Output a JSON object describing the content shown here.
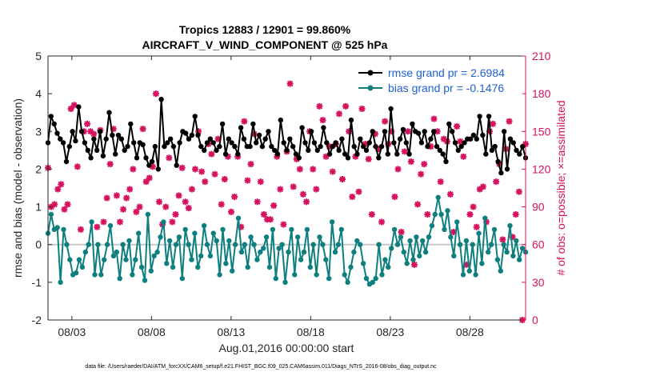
{
  "chart_data": {
    "type": "line",
    "title": "Tropics 12883 / 12901 = 99.860%",
    "subtitle": "AIRCRAFT_V_WIND_COMPONENT @ 525 hPa",
    "xlabel": "Aug.01,2016 00:00:00 start",
    "ylabel": "rmse and bias (model - observation)",
    "ylabel_right": "# of obs: o=possible; ×=assimilated",
    "footer": "data file: /Users/raeder/DAI/ATM_forcXX/CAM6_setup/f.e21.FHIST_BGC.f09_025.CAM6assim.011/Diags_NTrS_2016-08/obs_diag_output.nc",
    "x_start_day": 1.5,
    "x_end_day": 31.5,
    "xlim": [
      1.5,
      31.5
    ],
    "ylim": [
      -2,
      5
    ],
    "ylim_right": [
      0,
      210
    ],
    "x_ticks": [
      3,
      8,
      13,
      18,
      23,
      28
    ],
    "x_tick_labels": [
      "08/03",
      "08/08",
      "08/13",
      "08/18",
      "08/23",
      "08/28"
    ],
    "y_ticks": [
      -2,
      -1,
      0,
      1,
      2,
      3,
      4,
      5
    ],
    "y_tick_labels": [
      "-2",
      "-1",
      "0",
      "1",
      "2",
      "3",
      "4",
      "5"
    ],
    "y_right_ticks": [
      0,
      30,
      60,
      90,
      120,
      150,
      180,
      210
    ],
    "y_right_tick_labels": [
      "0",
      "30",
      "60",
      "90",
      "120",
      "150",
      "180",
      "210"
    ],
    "zero_line": 0,
    "legend_position": "top-right",
    "colors": {
      "rmse": "#000000",
      "bias": "#0e7f7f",
      "obs": "#d6115e",
      "zero": "#c8c8c8",
      "legend_text": "#1f5fd6",
      "right_axis": "#d6115e"
    },
    "series": [
      {
        "name": "rmse grand pr = 2.6984",
        "key": "rmse",
        "values": [
          2.7,
          3.4,
          3.2,
          2.95,
          2.8,
          2.7,
          2.2,
          2.6,
          3.0,
          2.75,
          3.65,
          3.0,
          2.7,
          2.5,
          2.3,
          2.8,
          2.5,
          3.0,
          2.35,
          2.8,
          3.5,
          2.9,
          2.4,
          2.9,
          2.8,
          2.5,
          2.6,
          3.2,
          2.7,
          2.3,
          2.7,
          2.65,
          2.3,
          2.1,
          2.2,
          2.6,
          2.0,
          3.85,
          2.6,
          2.7,
          2.8,
          2.6,
          2.1,
          2.7,
          3.0,
          2.95,
          2.8,
          2.9,
          3.4,
          2.9,
          2.6,
          2.5,
          2.7,
          2.8,
          2.7,
          2.5,
          2.6,
          3.2,
          2.4,
          2.8,
          2.7,
          2.6,
          2.4,
          3.1,
          2.8,
          2.6,
          2.6,
          3.2,
          2.7,
          2.9,
          2.6,
          2.8,
          3.0,
          2.6,
          2.5,
          2.4,
          3.3,
          2.7,
          2.5,
          2.8,
          2.6,
          2.4,
          2.3,
          3.1,
          2.7,
          2.5,
          3.0,
          2.7,
          2.5,
          2.6,
          3.1,
          2.7,
          2.4,
          2.6,
          2.7,
          2.5,
          2.8,
          2.4,
          2.3,
          3.3,
          2.6,
          2.4,
          2.8,
          2.6,
          2.5,
          2.7,
          3.0,
          2.6,
          2.3,
          2.6,
          3.0,
          2.4,
          3.6,
          2.7,
          2.4,
          2.8,
          3.05,
          2.7,
          2.4,
          3.2,
          3.0,
          2.95,
          2.7,
          3.0,
          2.6,
          2.8,
          3.0,
          2.6,
          2.5,
          2.4,
          2.2,
          3.2,
          3.0,
          2.7,
          2.5,
          2.6,
          2.7,
          2.8,
          2.8,
          2.9,
          2.8,
          3.4,
          2.9,
          2.4,
          3.4,
          2.5,
          2.6,
          2.2,
          1.9,
          3.0,
          2.0,
          2.8,
          2.7,
          2.5,
          2.4,
          2.6,
          2.3
        ]
      },
      {
        "name": "bias grand pr = -0.1476",
        "key": "bias",
        "values": [
          0.3,
          0.8,
          0.4,
          0.45,
          -1.0,
          0.4,
          0.0,
          -0.4,
          -0.8,
          -0.75,
          -0.4,
          -0.6,
          -0.2,
          0.0,
          0.6,
          -0.8,
          0.0,
          -0.8,
          -0.4,
          0.0,
          0.5,
          -0.3,
          -0.2,
          -0.9,
          0.0,
          -0.4,
          0.1,
          -0.8,
          -0.4,
          0.3,
          -0.6,
          -0.95,
          0.8,
          -0.7,
          -0.3,
          -0.2,
          0.2,
          0.6,
          -0.5,
          0.1,
          -0.6,
          0.0,
          0.2,
          -0.9,
          0.4,
          0.0,
          -0.4,
          0.3,
          -0.6,
          -0.3,
          0.5,
          0.0,
          -0.3,
          0.3,
          0.1,
          -0.8,
          0.4,
          -0.5,
          0.1,
          -0.7,
          0.0,
          0.7,
          -0.2,
          0.0,
          -0.6,
          0.2,
          0.0,
          -0.4,
          -0.2,
          -0.1,
          0.2,
          -0.6,
          0.4,
          -0.9,
          -0.1,
          0.0,
          -1.0,
          -0.2,
          0.4,
          -0.8,
          0.2,
          -0.4,
          -0.2,
          0.4,
          -0.6,
          0.0,
          -0.8,
          0.2,
          0.0,
          -0.4,
          -0.9,
          0.6,
          -0.2,
          0.0,
          0.4,
          -0.8,
          -1.0,
          -0.6,
          -0.2,
          0.1,
          0.0,
          -0.5,
          -0.9,
          -1.05,
          -1.0,
          -0.9,
          0.0,
          -0.8,
          -0.4,
          -0.6,
          -0.1,
          0.4,
          0.0,
          0.2,
          -0.2,
          -0.5,
          0.1,
          -0.4,
          0.2,
          -0.3,
          0.1,
          -0.2,
          0.2,
          0.5,
          0.8,
          1.25,
          0.8,
          0.4,
          0.9,
          0.2,
          -0.3,
          0.6,
          0.0,
          -0.8,
          0.1,
          -0.7,
          0.0,
          -0.8,
          0.3,
          -0.5,
          0.7,
          -0.2,
          0.0,
          0.4,
          -0.4,
          -0.7,
          0.0,
          -0.2,
          0.5,
          -0.3,
          0.1,
          -0.4,
          -0.1,
          -0.2
        ]
      },
      {
        "name": "obs",
        "key": "obs",
        "values": [
          121,
          90,
          92,
          104,
          108,
          88,
          92,
          168,
          171,
          122,
          72,
          150,
          156,
          150,
          148,
          74,
          151,
          78,
          97,
          124,
          152,
          99,
          78,
          88,
          97,
          104,
          120,
          86,
          90,
          152,
          110,
          113,
          122,
          180,
          94,
          76,
          90,
          129,
          78,
          84,
          99,
          121,
          94,
          89,
          104,
          120,
          150,
          118,
          110,
          140,
          132,
          116,
          144,
          92,
          112,
          130,
          86,
          98,
          130,
          74,
          158,
          111,
          124,
          148,
          94,
          110,
          84,
          80,
          80,
          91,
          130,
          104,
          76,
          134,
          188,
          106,
          128,
          120,
          100,
          94,
          150,
          120,
          104,
          170,
          159,
          130,
          138,
          118,
          140,
          164,
          112,
          170,
          150,
          98,
          130,
          102,
          168,
          140,
          128,
          84,
          148,
          136,
          78,
          158,
          140,
          150,
          98,
          120,
          70,
          134,
          150,
          126,
          44,
          92,
          116,
          124,
          84,
          138,
          160,
          150,
          110,
          144,
          142,
          100,
          70,
          154,
          142,
          130,
          44,
          84,
          90,
          74,
          104,
          106,
          78,
          150,
          156,
          110,
          124,
          64,
          136,
          158,
          66,
          84,
          102,
          0,
          140
        ]
      }
    ]
  }
}
